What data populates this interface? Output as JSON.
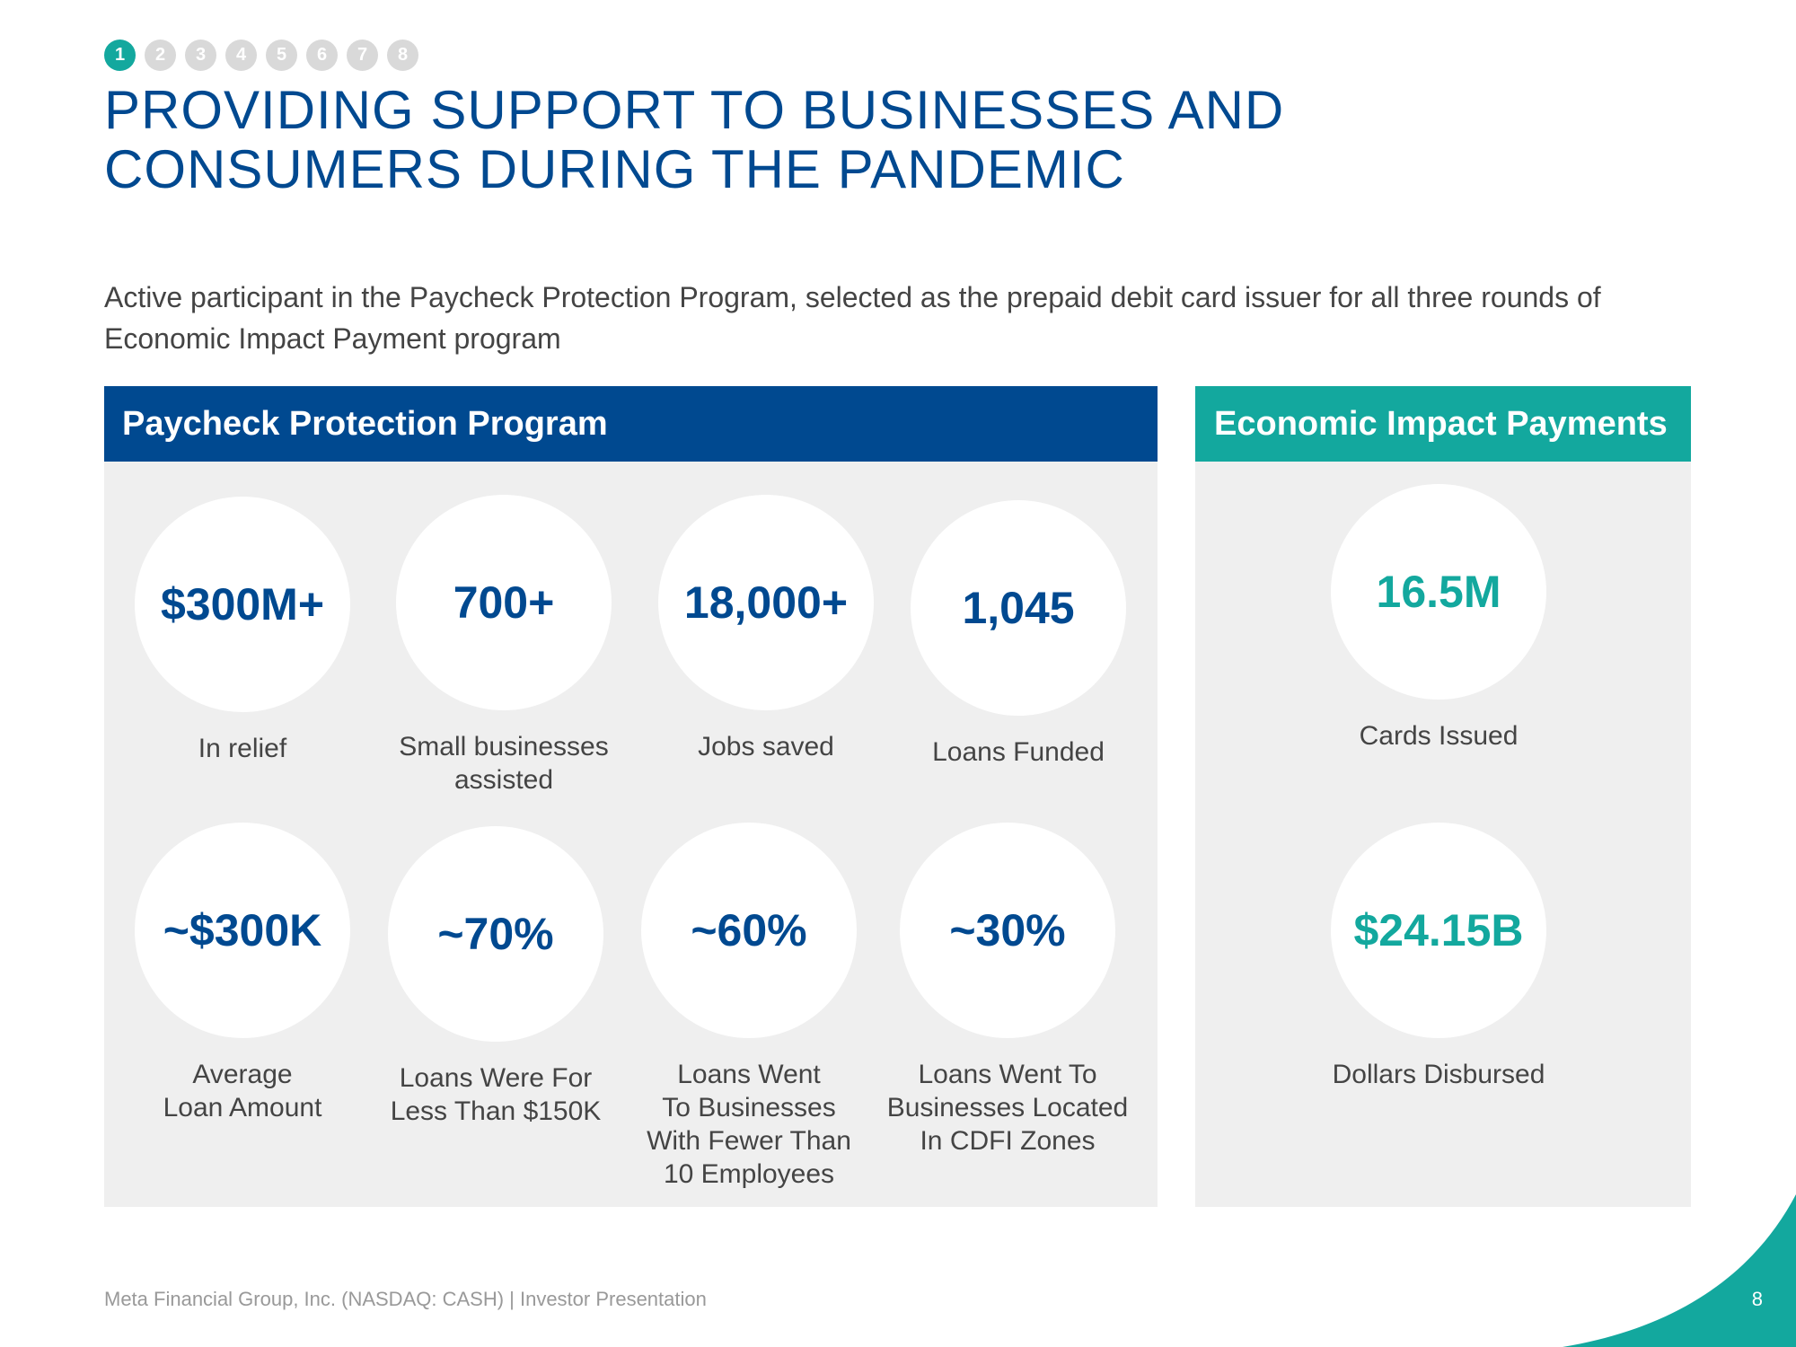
{
  "steps": [
    "1",
    "2",
    "3",
    "4",
    "5",
    "6",
    "7",
    "8"
  ],
  "active_step": 0,
  "title_line1": "PROVIDING SUPPORT TO BUSINESSES AND",
  "title_line2": "CONSUMERS DURING THE PANDEMIC",
  "subtitle": "Active participant in the Paycheck Protection Program, selected as the prepaid debit card issuer for all three rounds of Economic Impact Payment program",
  "ppp": {
    "header": "Paycheck Protection Program",
    "stats": [
      {
        "value": "$300M+",
        "label": "In relief"
      },
      {
        "value": "700+",
        "label": "Small businesses\nassisted"
      },
      {
        "value": "18,000+",
        "label": "Jobs saved"
      },
      {
        "value": "1,045",
        "label": "Loans Funded"
      },
      {
        "value": "~$300K",
        "label": "Average\nLoan Amount"
      },
      {
        "value": "~70%",
        "label": "Loans Were For\nLess Than $150K"
      },
      {
        "value": "~60%",
        "label": "Loans Went\nTo Businesses\nWith Fewer Than\n10 Employees"
      },
      {
        "value": "~30%",
        "label": "Loans Went To\nBusinesses Located\nIn CDFI Zones"
      }
    ]
  },
  "eip": {
    "header": "Economic Impact Payments",
    "stats": [
      {
        "value": "16.5M",
        "label": "Cards Issued"
      },
      {
        "value": "$24.15B",
        "label": "Dollars Disbursed"
      }
    ]
  },
  "footer": {
    "text": "Meta Financial Group, Inc. (NASDAQ: CASH) | Investor Presentation",
    "page_number": "8"
  },
  "colors": {
    "brand_blue": "#004990",
    "brand_teal": "#13a89e",
    "panel_gray": "#efefef",
    "step_inactive": "#d9d9d9"
  }
}
